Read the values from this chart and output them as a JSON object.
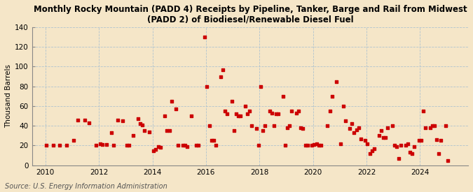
{
  "title": "Monthly Rocky Mountain (PADD 4) Receipts by Pipeline, Tanker, Barge and Rail from Midwest\n(PADD 2) of Biodiesel/Renewable Diesel Fuel",
  "ylabel": "Thousand Barrels",
  "source": "Source: U.S. Energy Information Administration",
  "bg_color": "#f5e6c8",
  "dot_color": "#cc0000",
  "xlim": [
    2009.5,
    2025.8
  ],
  "ylim": [
    0,
    140
  ],
  "yticks": [
    0,
    20,
    40,
    60,
    80,
    100,
    120,
    140
  ],
  "xticks": [
    2010,
    2012,
    2014,
    2016,
    2018,
    2020,
    2022,
    2024
  ],
  "data": [
    [
      2010.04,
      20
    ],
    [
      2010.29,
      20
    ],
    [
      2010.54,
      20
    ],
    [
      2010.79,
      20
    ],
    [
      2011.04,
      25
    ],
    [
      2011.21,
      46
    ],
    [
      2011.46,
      46
    ],
    [
      2011.63,
      43
    ],
    [
      2011.88,
      20
    ],
    [
      2012.04,
      22
    ],
    [
      2012.13,
      21
    ],
    [
      2012.29,
      21
    ],
    [
      2012.46,
      33
    ],
    [
      2012.54,
      20
    ],
    [
      2012.71,
      46
    ],
    [
      2012.88,
      45
    ],
    [
      2013.04,
      20
    ],
    [
      2013.13,
      20
    ],
    [
      2013.29,
      30
    ],
    [
      2013.46,
      47
    ],
    [
      2013.54,
      42
    ],
    [
      2013.63,
      41
    ],
    [
      2013.71,
      35
    ],
    [
      2013.88,
      34
    ],
    [
      2014.04,
      15
    ],
    [
      2014.13,
      16
    ],
    [
      2014.21,
      19
    ],
    [
      2014.29,
      18
    ],
    [
      2014.46,
      50
    ],
    [
      2014.54,
      35
    ],
    [
      2014.63,
      35
    ],
    [
      2014.71,
      65
    ],
    [
      2014.88,
      57
    ],
    [
      2014.96,
      20
    ],
    [
      2015.13,
      20
    ],
    [
      2015.21,
      20
    ],
    [
      2015.29,
      19
    ],
    [
      2015.46,
      50
    ],
    [
      2015.63,
      20
    ],
    [
      2015.71,
      20
    ],
    [
      2015.96,
      130
    ],
    [
      2016.04,
      80
    ],
    [
      2016.13,
      40
    ],
    [
      2016.21,
      25
    ],
    [
      2016.29,
      25
    ],
    [
      2016.38,
      20
    ],
    [
      2016.54,
      90
    ],
    [
      2016.63,
      97
    ],
    [
      2016.71,
      55
    ],
    [
      2016.79,
      52
    ],
    [
      2016.96,
      65
    ],
    [
      2017.04,
      35
    ],
    [
      2017.13,
      52
    ],
    [
      2017.21,
      50
    ],
    [
      2017.29,
      50
    ],
    [
      2017.46,
      60
    ],
    [
      2017.54,
      52
    ],
    [
      2017.63,
      55
    ],
    [
      2017.71,
      40
    ],
    [
      2017.88,
      37
    ],
    [
      2017.96,
      20
    ],
    [
      2018.04,
      80
    ],
    [
      2018.13,
      35
    ],
    [
      2018.21,
      40
    ],
    [
      2018.38,
      55
    ],
    [
      2018.46,
      53
    ],
    [
      2018.54,
      40
    ],
    [
      2018.63,
      52
    ],
    [
      2018.71,
      52
    ],
    [
      2018.88,
      70
    ],
    [
      2018.96,
      20
    ],
    [
      2019.04,
      38
    ],
    [
      2019.13,
      40
    ],
    [
      2019.21,
      55
    ],
    [
      2019.38,
      53
    ],
    [
      2019.46,
      55
    ],
    [
      2019.54,
      38
    ],
    [
      2019.63,
      37
    ],
    [
      2019.71,
      20
    ],
    [
      2019.79,
      20
    ],
    [
      2019.96,
      20
    ],
    [
      2020.04,
      21
    ],
    [
      2020.13,
      22
    ],
    [
      2020.21,
      20
    ],
    [
      2020.29,
      20
    ],
    [
      2020.54,
      40
    ],
    [
      2020.63,
      55
    ],
    [
      2020.71,
      70
    ],
    [
      2020.88,
      85
    ],
    [
      2021.04,
      22
    ],
    [
      2021.13,
      60
    ],
    [
      2021.21,
      45
    ],
    [
      2021.38,
      37
    ],
    [
      2021.46,
      42
    ],
    [
      2021.54,
      33
    ],
    [
      2021.63,
      36
    ],
    [
      2021.71,
      38
    ],
    [
      2021.79,
      27
    ],
    [
      2021.96,
      25
    ],
    [
      2022.04,
      22
    ],
    [
      2022.13,
      12
    ],
    [
      2022.21,
      15
    ],
    [
      2022.29,
      17
    ],
    [
      2022.46,
      30
    ],
    [
      2022.54,
      35
    ],
    [
      2022.63,
      28
    ],
    [
      2022.71,
      28
    ],
    [
      2022.79,
      38
    ],
    [
      2022.96,
      40
    ],
    [
      2023.04,
      20
    ],
    [
      2023.13,
      19
    ],
    [
      2023.21,
      7
    ],
    [
      2023.29,
      20
    ],
    [
      2023.46,
      20
    ],
    [
      2023.54,
      22
    ],
    [
      2023.63,
      13
    ],
    [
      2023.71,
      12
    ],
    [
      2023.79,
      19
    ],
    [
      2023.96,
      25
    ],
    [
      2024.04,
      25
    ],
    [
      2024.13,
      55
    ],
    [
      2024.21,
      38
    ],
    [
      2024.38,
      38
    ],
    [
      2024.46,
      40
    ],
    [
      2024.54,
      40
    ],
    [
      2024.63,
      26
    ],
    [
      2024.71,
      12
    ],
    [
      2024.79,
      25
    ],
    [
      2024.96,
      40
    ],
    [
      2025.04,
      5
    ]
  ]
}
